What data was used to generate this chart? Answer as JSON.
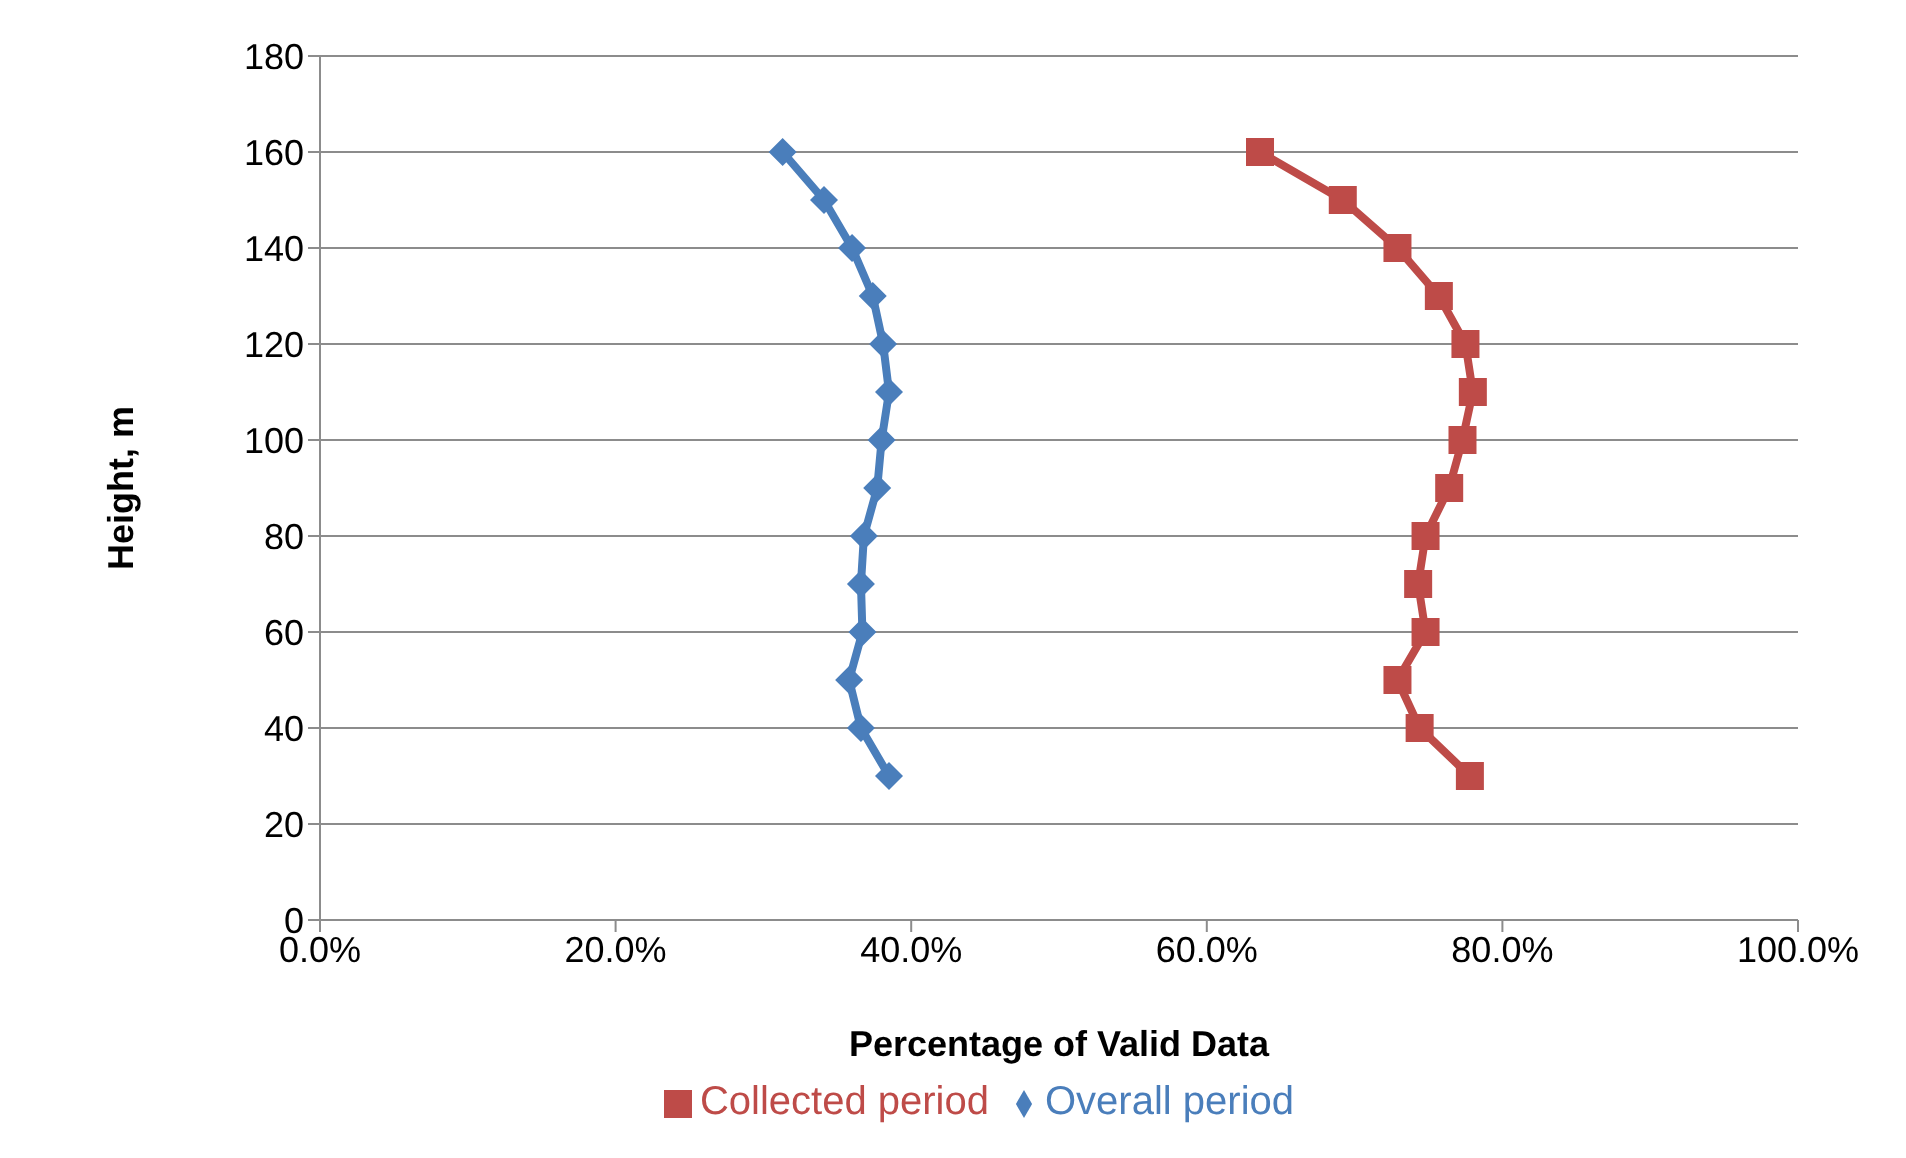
{
  "chart_data": {
    "type": "line",
    "xlabel": "Percentage of Valid Data",
    "ylabel": "Height, m",
    "xlim": [
      0,
      100
    ],
    "xticks": [
      {
        "value": 0,
        "label": "0.0%"
      },
      {
        "value": 20,
        "label": "20.0%"
      },
      {
        "value": 40,
        "label": "40.0%"
      },
      {
        "value": 60,
        "label": "60.0%"
      },
      {
        "value": 80,
        "label": "80.0%"
      },
      {
        "value": 100,
        "label": "100.0%"
      }
    ],
    "ylim": [
      0,
      180
    ],
    "yticks": [
      0,
      20,
      40,
      60,
      80,
      100,
      120,
      140,
      160,
      180
    ],
    "grid": "y",
    "legend": "bottom",
    "line_style": "solid",
    "series": [
      {
        "name": "Overall period",
        "color": "#4a7ebb",
        "marker": "diamond",
        "x": [
          31.3,
          34.1,
          36.0,
          37.4,
          38.1,
          38.5,
          38.0,
          37.7,
          36.8,
          36.6,
          36.7,
          35.8,
          36.6,
          38.5
        ],
        "values": [
          160,
          150,
          140,
          130,
          120,
          110,
          100,
          90,
          80,
          70,
          60,
          50,
          40,
          30
        ]
      },
      {
        "name": "Collected period",
        "color": "#be4b48",
        "marker": "square",
        "x": [
          63.6,
          69.2,
          72.9,
          75.7,
          77.5,
          78.0,
          77.3,
          76.4,
          74.8,
          74.3,
          74.8,
          72.9,
          74.4,
          77.8
        ],
        "values": [
          160,
          150,
          140,
          130,
          120,
          110,
          100,
          90,
          80,
          70,
          60,
          50,
          40,
          30
        ]
      }
    ]
  }
}
